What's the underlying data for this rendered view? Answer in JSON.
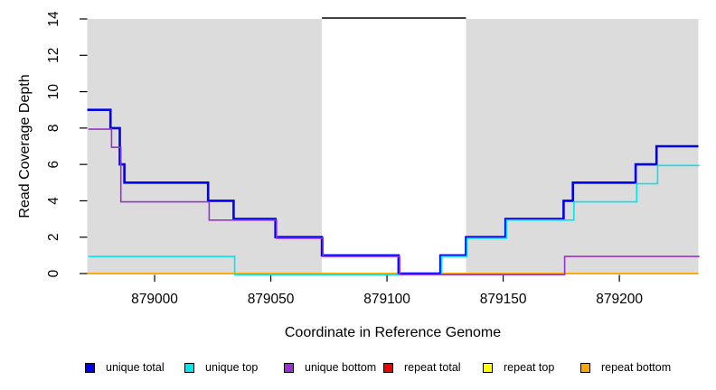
{
  "chart_data": {
    "type": "line",
    "subtype": "step",
    "title": "",
    "xlabel": "Coordinate in Reference Genome",
    "ylabel": "Read Coverage Depth",
    "xlim": [
      878971,
      879234
    ],
    "ylim": [
      0,
      14
    ],
    "x_ticks": [
      879000,
      879050,
      879100,
      879150,
      879200
    ],
    "y_ticks": [
      0,
      2,
      4,
      6,
      8,
      10,
      12,
      14
    ],
    "grid": false,
    "legend_position": "bottom",
    "background": {
      "shaded_color": "#DCDCDC",
      "gap_line_color": "#000000",
      "regions": [
        {
          "start": 878971,
          "end": 879072,
          "kind": "shaded"
        },
        {
          "start": 879072,
          "end": 879134,
          "kind": "gap",
          "gap_line_value": 14
        },
        {
          "start": 879134,
          "end": 879234,
          "kind": "shaded"
        }
      ]
    },
    "series": [
      {
        "name": "unique total",
        "color": "#0000EE",
        "end": 879234,
        "steps": [
          [
            878971,
            9
          ],
          [
            878981,
            8
          ],
          [
            878985,
            6
          ],
          [
            878987,
            5
          ],
          [
            879023,
            4
          ],
          [
            879034,
            3
          ],
          [
            879052,
            2
          ],
          [
            879072,
            1
          ],
          [
            879105,
            0
          ],
          [
            879123,
            1
          ],
          [
            879134,
            2
          ],
          [
            879151,
            3
          ],
          [
            879176,
            4
          ],
          [
            879180,
            5
          ],
          [
            879207,
            6
          ],
          [
            879216,
            7
          ]
        ]
      },
      {
        "name": "unique top",
        "color": "#00E5EE",
        "end": 879234,
        "steps": [
          [
            878971,
            1
          ],
          [
            879034,
            0
          ],
          [
            879123,
            1
          ],
          [
            879134,
            2
          ],
          [
            879151,
            3
          ],
          [
            879180,
            4
          ],
          [
            879207,
            5
          ],
          [
            879216,
            6
          ]
        ]
      },
      {
        "name": "unique bottom",
        "color": "#9932CC",
        "end": 879234,
        "steps": [
          [
            878971,
            8
          ],
          [
            878981,
            7
          ],
          [
            878985,
            4
          ],
          [
            879023,
            3
          ],
          [
            879052,
            2
          ],
          [
            879072,
            1
          ],
          [
            879105,
            0
          ],
          [
            879176,
            1
          ]
        ]
      },
      {
        "name": "repeat total",
        "color": "#EE0000",
        "end": 879234,
        "steps": [
          [
            878971,
            0
          ]
        ]
      },
      {
        "name": "repeat top",
        "color": "#FFFF00",
        "end": 879234,
        "steps": [
          [
            878971,
            0
          ]
        ]
      },
      {
        "name": "repeat bottom",
        "color": "#FFA500",
        "end": 879234,
        "steps": [
          [
            878971,
            0
          ]
        ]
      }
    ],
    "legend": [
      {
        "label": "unique total",
        "color": "#0000EE"
      },
      {
        "label": "unique top",
        "color": "#00E5EE"
      },
      {
        "label": "unique bottom",
        "color": "#9932CC"
      },
      {
        "label": "repeat total",
        "color": "#EE0000"
      },
      {
        "label": "repeat top",
        "color": "#FFFF00"
      },
      {
        "label": "repeat bottom",
        "color": "#FFA500"
      }
    ]
  }
}
